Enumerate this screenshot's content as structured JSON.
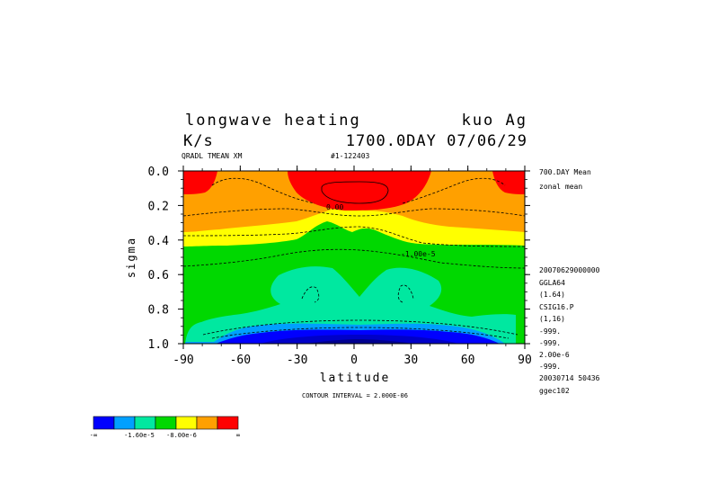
{
  "title": {
    "line1_left": "longwave heating",
    "line1_right": "kuo Ag",
    "line2_left": "K/s",
    "line2_right": "1700.0DAY 07/06/29",
    "sub_left": "QRADL TMEAN XM",
    "sub_right": "#1-122403"
  },
  "contour_interval": "CONTOUR INTERVAL = 2.000E-06",
  "contour_labels": [
    "0.00",
    "-1.00e-5"
  ],
  "right_info": [
    "700.DAY Mean",
    "zonal mean",
    "20070629000000",
    "GGLA64",
    "(1.64)",
    "CSIG16.P",
    "(1,16)",
    "-999.",
    "-999.",
    "2.00e-6",
    "-999.",
    "20030714  50436",
    "ggec102"
  ],
  "colorbar": {
    "colors": [
      "#0000ff",
      "#00a0ff",
      "#00e8a0",
      "#00d800",
      "#ffff00",
      "#ffa000",
      "#ff0000"
    ],
    "labels": [
      "-∞",
      "-1.60e-5",
      "-8.00e-6",
      "∞"
    ]
  },
  "chart_data": {
    "type": "heatmap",
    "xlabel": "latitude",
    "ylabel": "sigma",
    "xlim": [
      -90,
      90
    ],
    "ylim": [
      0.0,
      1.0
    ],
    "y_inverted": true,
    "x_ticks": [
      -90,
      -60,
      -30,
      0,
      30,
      60,
      90
    ],
    "y_ticks": [
      "0.0",
      "0.2",
      "0.4",
      "0.6",
      "0.8",
      "1.0"
    ],
    "y_tick_values": [
      0.0,
      0.2,
      0.4,
      0.6,
      0.8,
      1.0
    ],
    "contour_interval": 2e-06,
    "levels": [
      "<-1.6e-5",
      "-1.6e-5 to -1.2e-5",
      "-1.2e-5 to -8e-6",
      "-8e-6 to -4e-6",
      "-4e-6 to 0",
      "0 to 4e-6",
      ">4e-6"
    ],
    "approx_bands_by_sigma": [
      {
        "sigma": [
          0.0,
          0.08
        ],
        "band": "red (top, poles and equator)"
      },
      {
        "sigma": [
          0.0,
          0.3
        ],
        "band": "orange"
      },
      {
        "sigma": [
          0.3,
          0.44
        ],
        "band": "yellow"
      },
      {
        "sigma": [
          0.44,
          0.86
        ],
        "band": "green"
      },
      {
        "sigma": [
          0.6,
          0.94
        ],
        "band": "teal"
      },
      {
        "sigma": [
          0.92,
          1.0
        ],
        "band": "light blue / blue (surface)"
      }
    ]
  }
}
